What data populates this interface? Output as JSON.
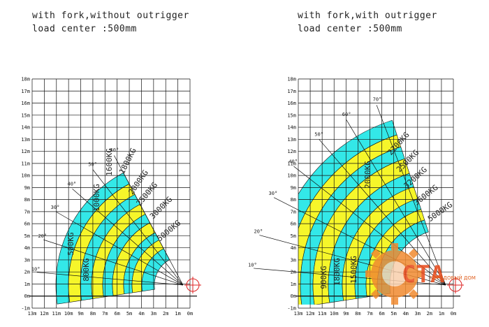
{
  "charts": [
    {
      "id": "without_outrigger",
      "title_line1": "with fork,without outrigger",
      "title_line2": "load center :500mm",
      "y_ticks": [
        "18m",
        "17m",
        "16m",
        "15m",
        "14m",
        "13m",
        "12m",
        "11m",
        "10m",
        "9m",
        "8m",
        "7m",
        "6m",
        "5m",
        "4m",
        "3m",
        "2m",
        "1m",
        "0m",
        "-1m"
      ],
      "x_ticks": [
        "13m",
        "12m",
        "11m",
        "10m",
        "9m",
        "8m",
        "7m",
        "6m",
        "5m",
        "4m",
        "3m",
        "2m",
        "1m",
        "0m"
      ],
      "boom_angles": [
        "10°",
        "20°",
        "30°",
        "40°",
        "50°",
        "60°"
      ],
      "load_zones": [
        {
          "label": "500KG",
          "color": "#33e8e8"
        },
        {
          "label": "800KG",
          "color": "#f6f62a"
        },
        {
          "label": "1000KG",
          "color": "#33e8e8"
        },
        {
          "label": "1600KG",
          "color": "#f6f62a"
        },
        {
          "label": "1800KG",
          "color": "#33e8e8"
        },
        {
          "label": "2000KG",
          "color": "#f6f62a"
        },
        {
          "label": "2500KG",
          "color": "#33e8e8"
        },
        {
          "label": "3000KG",
          "color": "#f6f62a"
        },
        {
          "label": "5000KG",
          "color": "#33e8e8"
        }
      ]
    },
    {
      "id": "with_outrigger",
      "title_line1": "with fork,with outrigger",
      "title_line2": "load center :500mm",
      "y_ticks": [
        "18m",
        "17m",
        "16m",
        "15m",
        "14m",
        "13m",
        "12m",
        "11m",
        "10m",
        "9m",
        "8m",
        "7m",
        "6m",
        "5m",
        "4m",
        "3m",
        "2m",
        "1m",
        "0m",
        "-1m"
      ],
      "x_ticks": [
        "13m",
        "12m",
        "11m",
        "10m",
        "9m",
        "8m",
        "7m",
        "6m",
        "5m",
        "4m",
        "3m",
        "2m",
        "1m",
        "0m"
      ],
      "boom_angles": [
        "10°",
        "20°",
        "30°",
        "40°",
        "50°",
        "60°",
        "70°"
      ],
      "load_zones": [
        {
          "label": "900KG",
          "color": "#33e8e8"
        },
        {
          "label": "1800KG",
          "color": "#f6f62a"
        },
        {
          "label": "1500KG",
          "color": "#33e8e8"
        },
        {
          "label": "2000KG",
          "color": "#f6f62a"
        },
        {
          "label": "2200KG",
          "color": "#33e8e8"
        },
        {
          "label": "2500KG",
          "color": "#f6f62a"
        },
        {
          "label": "3200KG",
          "color": "#33e8e8"
        },
        {
          "label": "3600KG",
          "color": "#f6f62a"
        },
        {
          "label": "5000KG",
          "color": "#33e8e8"
        }
      ]
    }
  ],
  "watermark": {
    "text": "ГОРОДОВЫЙ ДОМ",
    "color": "#f08a30"
  }
}
